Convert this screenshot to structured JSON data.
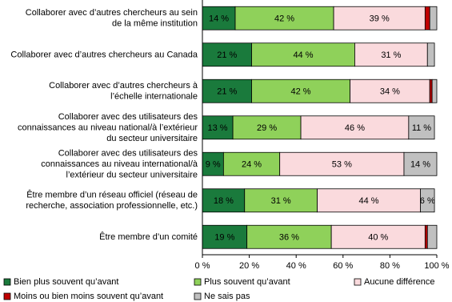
{
  "chart_data": {
    "type": "stacked-barh",
    "categories": [
      "Collaborer avec d’autres chercheurs au sein\nde la même institution",
      "Collaborer avec d’autres chercheurs au Canada",
      "Collaborer avec d’autres chercheurs à\nl’échelle internationale",
      "Collaborer avec des utilisateurs des\nconnaissances au niveau national/à l’extérieur\ndu secteur universitaire",
      "Collaborer avec des utilisateurs des\nconnaissances au niveau international/à\nl’extérieur du secteur universitaire",
      "Être membre d’un réseau officiel (réseau de\nrecherche, association professionnelle, etc.)",
      "Être membre d’un comité"
    ],
    "series": [
      {
        "name": "Bien plus souvent qu’avant",
        "color": "#1a7a3c",
        "values": [
          14,
          21,
          21,
          13,
          9,
          18,
          19
        ],
        "value_labels": [
          "14 %",
          "21 %",
          "21 %",
          "13 %",
          "9 %",
          "18 %",
          "19 %"
        ]
      },
      {
        "name": "Plus souvent qu’avant",
        "color": "#8fd15a",
        "values": [
          42,
          44,
          42,
          29,
          24,
          31,
          36
        ],
        "value_labels": [
          "42 %",
          "44 %",
          "42 %",
          "29 %",
          "24 %",
          "31 %",
          "36 %"
        ]
      },
      {
        "name": "Aucune différence",
        "color": "#fadadd",
        "values": [
          39,
          31,
          34,
          46,
          53,
          44,
          40
        ],
        "value_labels": [
          "39 %",
          "31 %",
          "34 %",
          "46 %",
          "53 %",
          "44 %",
          "40 %"
        ]
      },
      {
        "name": "Moins ou bien moins souvent qu’avant",
        "color": "#c00000",
        "values": [
          2,
          0,
          1,
          0,
          0,
          0,
          1
        ],
        "value_labels": [
          null,
          null,
          null,
          null,
          null,
          null,
          null
        ]
      },
      {
        "name": "Ne sais pas",
        "color": "#c0c0c0",
        "values": [
          3,
          3,
          2,
          11,
          14,
          6,
          4
        ],
        "value_labels": [
          null,
          null,
          null,
          "11 %",
          "14 %",
          "6 %",
          null
        ]
      }
    ],
    "xlim": [
      0,
      100
    ],
    "xticks": [
      {
        "value": 0,
        "label": "0 %"
      },
      {
        "value": 20,
        "label": "20 %"
      },
      {
        "value": 40,
        "label": "40 %"
      },
      {
        "value": 60,
        "label": "60 %"
      },
      {
        "value": 80,
        "label": "80 %"
      },
      {
        "value": 100,
        "label": "100 %"
      }
    ],
    "legend": "bottom"
  }
}
